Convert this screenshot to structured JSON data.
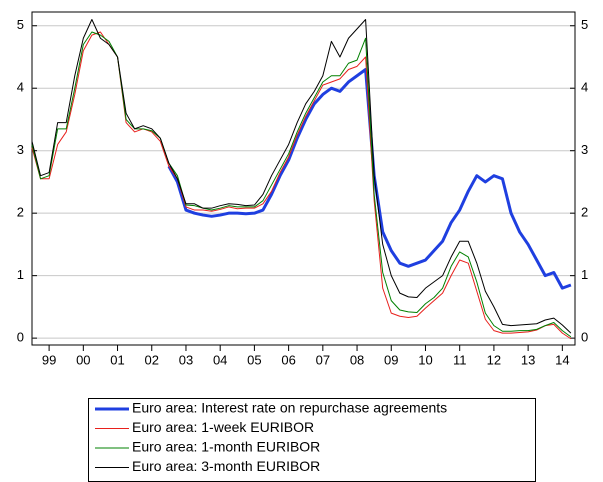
{
  "chart_data": {
    "type": "line",
    "x": [
      1999.0,
      1999.25,
      1999.5,
      1999.75,
      2000.0,
      2000.25,
      2000.5,
      2000.75,
      2001.0,
      2001.25,
      2001.5,
      2001.75,
      2002.0,
      2002.25,
      2002.5,
      2002.75,
      2003.0,
      2003.25,
      2003.5,
      2003.75,
      2004.0,
      2004.25,
      2004.5,
      2004.75,
      2005.0,
      2005.25,
      2005.5,
      2005.75,
      2006.0,
      2006.25,
      2006.5,
      2006.75,
      2007.0,
      2007.25,
      2007.5,
      2007.75,
      2008.0,
      2008.25,
      2008.5,
      2008.75,
      2009.0,
      2009.25,
      2009.5,
      2009.75,
      2010.0,
      2010.25,
      2010.5,
      2010.75,
      2011.0,
      2011.25,
      2011.5,
      2011.75,
      2012.0,
      2012.25,
      2012.5,
      2012.75,
      2013.0,
      2013.25,
      2013.5,
      2013.75,
      2014.0,
      2014.25,
      2014.5,
      2014.75
    ],
    "series": [
      {
        "name": "Euro area: Interest rate on repurchase agreements",
        "color": "#1f3fe0",
        "values": [
          null,
          null,
          null,
          null,
          null,
          null,
          null,
          null,
          null,
          null,
          null,
          null,
          null,
          null,
          null,
          null,
          2.75,
          2.5,
          2.05,
          2.0,
          1.97,
          1.95,
          1.97,
          2.0,
          2.0,
          1.99,
          2.0,
          2.05,
          2.3,
          2.6,
          2.85,
          3.2,
          3.5,
          3.75,
          3.9,
          4.0,
          3.95,
          4.1,
          4.2,
          4.3,
          2.6,
          1.7,
          1.4,
          1.2,
          1.15,
          1.2,
          1.25,
          1.4,
          1.55,
          1.85,
          2.05,
          2.35,
          2.6,
          2.5,
          2.6,
          2.55,
          2.0,
          1.7,
          1.5,
          1.25,
          1.0,
          1.05,
          0.8,
          0.85
        ]
      },
      {
        "name": "Euro area: 1-week EURIBOR",
        "color": "#e8201c",
        "values": [
          3.05,
          2.55,
          2.55,
          3.1,
          3.3,
          3.9,
          4.6,
          4.85,
          4.9,
          4.7,
          4.5,
          3.45,
          3.3,
          3.35,
          3.3,
          3.15,
          2.75,
          2.55,
          2.1,
          2.05,
          2.05,
          2.03,
          2.06,
          2.1,
          2.07,
          2.08,
          2.08,
          2.15,
          2.35,
          2.65,
          2.9,
          3.25,
          3.55,
          3.8,
          4.05,
          4.1,
          4.15,
          4.3,
          4.35,
          4.5,
          2.2,
          0.8,
          0.4,
          0.35,
          0.33,
          0.35,
          0.48,
          0.6,
          0.72,
          1.0,
          1.25,
          1.2,
          0.75,
          0.3,
          0.12,
          0.08,
          0.08,
          0.09,
          0.1,
          0.13,
          0.2,
          0.22,
          0.08,
          -0.01
        ]
      },
      {
        "name": "Euro area: 1-month EURIBOR",
        "color": "#008000",
        "values": [
          3.1,
          2.55,
          2.6,
          3.35,
          3.35,
          4.0,
          4.7,
          4.9,
          4.85,
          4.75,
          4.5,
          3.5,
          3.35,
          3.35,
          3.32,
          3.2,
          2.8,
          2.6,
          2.13,
          2.12,
          2.08,
          2.05,
          2.08,
          2.12,
          2.1,
          2.1,
          2.1,
          2.2,
          2.45,
          2.7,
          2.95,
          3.3,
          3.6,
          3.85,
          4.1,
          4.2,
          4.2,
          4.4,
          4.45,
          4.8,
          2.3,
          1.05,
          0.6,
          0.45,
          0.42,
          0.41,
          0.55,
          0.65,
          0.8,
          1.15,
          1.38,
          1.3,
          0.9,
          0.4,
          0.2,
          0.11,
          0.11,
          0.12,
          0.12,
          0.14,
          0.2,
          0.25,
          0.12,
          0.02
        ]
      },
      {
        "name": "Euro area: 3-month EURIBOR",
        "color": "#000000",
        "values": [
          3.15,
          2.6,
          2.65,
          3.45,
          3.45,
          4.2,
          4.8,
          5.1,
          4.8,
          4.7,
          4.5,
          3.6,
          3.35,
          3.4,
          3.35,
          3.2,
          2.8,
          2.55,
          2.15,
          2.15,
          2.08,
          2.08,
          2.12,
          2.15,
          2.14,
          2.12,
          2.13,
          2.3,
          2.6,
          2.85,
          3.1,
          3.45,
          3.75,
          3.95,
          4.2,
          4.75,
          4.5,
          4.8,
          4.95,
          5.1,
          2.6,
          1.5,
          1.0,
          0.72,
          0.66,
          0.65,
          0.8,
          0.9,
          1.0,
          1.3,
          1.55,
          1.55,
          1.2,
          0.75,
          0.5,
          0.22,
          0.2,
          0.21,
          0.22,
          0.23,
          0.29,
          0.32,
          0.21,
          0.08
        ]
      }
    ],
    "xlim": [
      1999.0,
      2014.87
    ],
    "xticks": [
      {
        "value": 1999.5,
        "label": "99"
      },
      {
        "value": 2000.5,
        "label": "00"
      },
      {
        "value": 2001.5,
        "label": "01"
      },
      {
        "value": 2002.5,
        "label": "02"
      },
      {
        "value": 2003.5,
        "label": "03"
      },
      {
        "value": 2004.5,
        "label": "04"
      },
      {
        "value": 2005.5,
        "label": "05"
      },
      {
        "value": 2006.5,
        "label": "06"
      },
      {
        "value": 2007.5,
        "label": "07"
      },
      {
        "value": 2008.5,
        "label": "08"
      },
      {
        "value": 2009.5,
        "label": "09"
      },
      {
        "value": 2010.5,
        "label": "10"
      },
      {
        "value": 2011.5,
        "label": "11"
      },
      {
        "value": 2012.5,
        "label": "12"
      },
      {
        "value": 2013.5,
        "label": "13"
      },
      {
        "value": 2014.5,
        "label": "14"
      }
    ],
    "ylim": [
      -0.11,
      5.22
    ],
    "yticks": [
      0,
      1,
      2,
      3,
      4,
      5
    ],
    "grid": true
  }
}
